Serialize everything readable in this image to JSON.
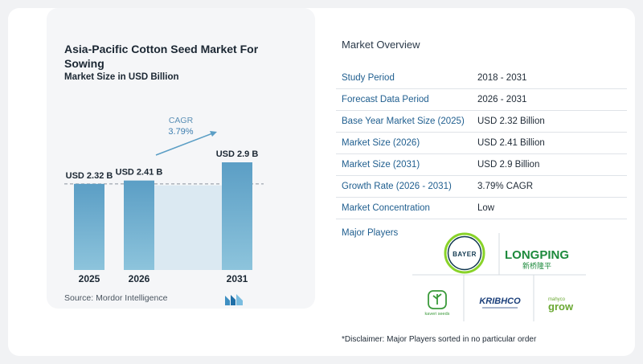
{
  "chart_data": {
    "type": "bar",
    "title": "Asia-Pacific Cotton Seed Market For Sowing",
    "subtitle": "Market Size in USD Billion",
    "categories": [
      "2025",
      "2026",
      "2031"
    ],
    "values": [
      2.32,
      2.41,
      2.9
    ],
    "value_labels": [
      "USD 2.32 B",
      "USD 2.41 B",
      "USD 2.9 B"
    ],
    "cagr_label": "CAGR",
    "cagr_value": "3.79%",
    "ylim": [
      0,
      3.7
    ],
    "bar_color": "#5b9ec5",
    "bar_color_light": "#b9d8e8"
  },
  "source": {
    "label": "Source:",
    "text": "Mordor Intelligence"
  },
  "overview": {
    "title": "Market Overview",
    "rows": [
      {
        "key": "Study Period",
        "value": "2018 - 2031"
      },
      {
        "key": "Forecast Data Period",
        "value": "2026 - 2031"
      },
      {
        "key": "Base Year Market Size (2025)",
        "value": "USD 2.32 Billion"
      },
      {
        "key": "Market Size (2026)",
        "value": "USD 2.41 Billion"
      },
      {
        "key": "Market Size (2031)",
        "value": "USD 2.9 Billion"
      },
      {
        "key": "Growth Rate (2026 - 2031)",
        "value": "3.79% CAGR"
      },
      {
        "key": "Market Concentration",
        "value": "Low"
      }
    ],
    "players_label": "Major Players",
    "players": [
      {
        "name": "BAYER",
        "icon": "bayer-logo"
      },
      {
        "name": "LONGPING",
        "sub": "新桥隆平",
        "icon": "longping-logo"
      },
      {
        "name": "kaveri seeds",
        "icon": "kaveri-logo"
      },
      {
        "name": "KRIBHCO",
        "icon": "kribhco-logo"
      },
      {
        "name": "mahyco grow",
        "icon": "mahyco-logo"
      }
    ],
    "disclaimer": "*Disclaimer: Major Players sorted in no particular order"
  }
}
